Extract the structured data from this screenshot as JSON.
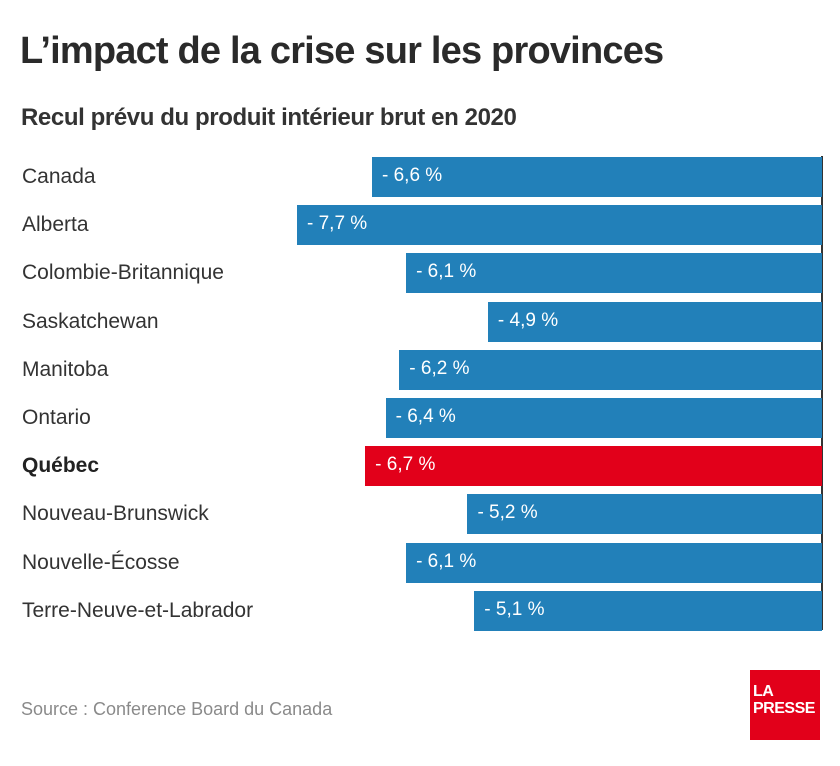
{
  "header": {
    "title": "L’impact de la crise sur les provinces",
    "subtitle": "Recul prévu du produit intérieur brut en 2020"
  },
  "chart_data": {
    "type": "bar",
    "orientation": "horizontal",
    "title": "L’impact de la crise sur les provinces",
    "subtitle": "Recul prévu du produit intérieur brut en 2020",
    "xlabel": "",
    "ylabel": "",
    "unit": "%",
    "xlim": [
      -7.7,
      0
    ],
    "grid": false,
    "categories": [
      "Canada",
      "Alberta",
      "Colombie-Britannique",
      "Saskatchewan",
      "Manitoba",
      "Ontario",
      "Québec",
      "Nouveau-Brunswick",
      "Nouvelle-Écosse",
      "Terre-Neuve-et-Labrador"
    ],
    "values": [
      -6.6,
      -7.7,
      -6.1,
      -4.9,
      -6.2,
      -6.4,
      -6.7,
      -5.2,
      -6.1,
      -5.1
    ],
    "data_labels": [
      "- 6,6 %",
      "- 7,7 %",
      "- 6,1 %",
      "- 4,9 %",
      "- 6,2 %",
      "- 6,4 %",
      "- 6,7 %",
      "- 5,2 %",
      "- 6,1 %",
      "- 5,1 %"
    ],
    "highlight": "Québec",
    "colors": {
      "default": "#2280b9",
      "highlight": "#e2001a",
      "axis": "#333333"
    }
  },
  "footer": {
    "source": "Source : Conference Board du Canada",
    "logo_line1": "LA",
    "logo_line2": "PRESSE",
    "logo_color": "#e2001a"
  }
}
